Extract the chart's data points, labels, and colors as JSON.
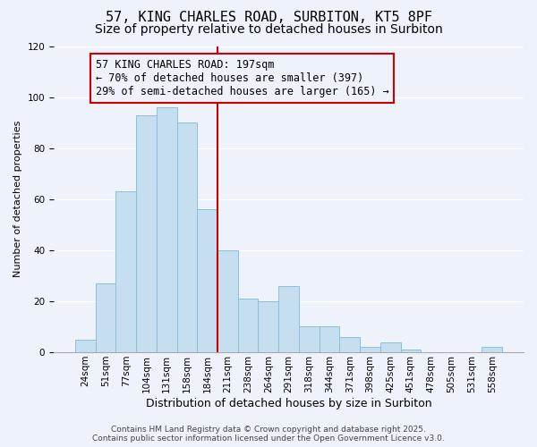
{
  "title": "57, KING CHARLES ROAD, SURBITON, KT5 8PF",
  "subtitle": "Size of property relative to detached houses in Surbiton",
  "xlabel": "Distribution of detached houses by size in Surbiton",
  "ylabel": "Number of detached properties",
  "bar_labels": [
    "24sqm",
    "51sqm",
    "77sqm",
    "104sqm",
    "131sqm",
    "158sqm",
    "184sqm",
    "211sqm",
    "238sqm",
    "264sqm",
    "291sqm",
    "318sqm",
    "344sqm",
    "371sqm",
    "398sqm",
    "425sqm",
    "451sqm",
    "478sqm",
    "505sqm",
    "531sqm",
    "558sqm"
  ],
  "bar_values": [
    5,
    27,
    63,
    93,
    96,
    90,
    56,
    40,
    21,
    20,
    26,
    10,
    10,
    6,
    2,
    4,
    1,
    0,
    0,
    0,
    2
  ],
  "bar_color": "#c5dff0",
  "bar_edge_color": "#8bbfda",
  "vline_x": 6.5,
  "vline_color": "#cc0000",
  "ylim": [
    0,
    120
  ],
  "annotation_title": "57 KING CHARLES ROAD: 197sqm",
  "annotation_line1": "← 70% of detached houses are smaller (397)",
  "annotation_line2": "29% of semi-detached houses are larger (165) →",
  "footer1": "Contains HM Land Registry data © Crown copyright and database right 2025.",
  "footer2": "Contains public sector information licensed under the Open Government Licence v3.0.",
  "background_color": "#eef2fb",
  "grid_color": "#ffffff",
  "title_fontsize": 11,
  "subtitle_fontsize": 10,
  "axis_label_fontsize": 9,
  "tick_fontsize": 7.5,
  "annotation_fontsize": 8.5,
  "footer_fontsize": 6.5,
  "ylabel_fontsize": 8
}
